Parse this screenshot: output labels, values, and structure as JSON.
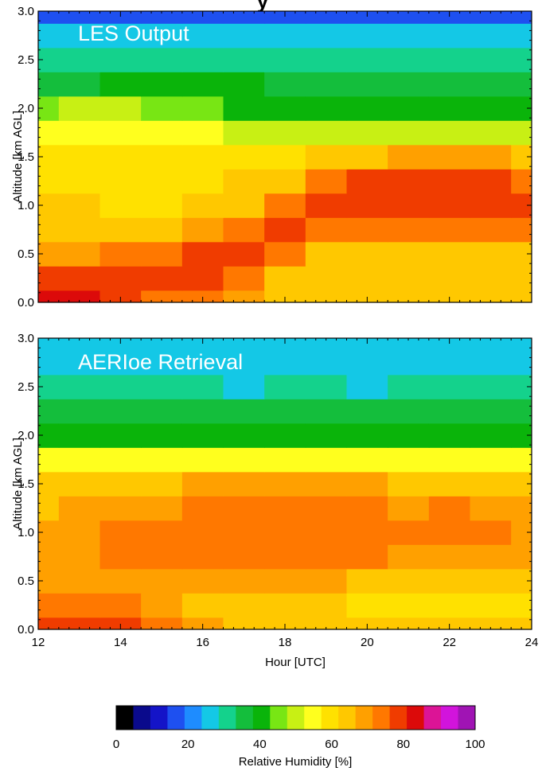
{
  "chart_data": [
    {
      "type": "heatmap",
      "panel_label": "LES Output",
      "title": "",
      "xlabel": "",
      "ylabel": "Altitude [km AGL]",
      "xlim": [
        12,
        24
      ],
      "ylim": [
        0.0,
        3.0
      ],
      "x_ticks": [
        "12",
        "14",
        "16",
        "18",
        "20",
        "22",
        "24"
      ],
      "y_ticks": [
        "0.0",
        "0.5",
        "1.0",
        "1.5",
        "2.0",
        "2.5",
        "3.0"
      ],
      "x_tick_labels_shown": false,
      "x": [
        12,
        13,
        14,
        15,
        16,
        17,
        18,
        19,
        20,
        21,
        22,
        23,
        24
      ],
      "y": [
        0.0,
        0.25,
        0.5,
        0.75,
        1.0,
        1.25,
        1.5,
        1.75,
        2.0,
        2.25,
        2.5,
        2.75,
        3.0
      ],
      "z_units": "Relative Humidity [%]",
      "z": [
        [
          85,
          85,
          80,
          76,
          72,
          68,
          64,
          62,
          62,
          62,
          62,
          62,
          62
        ],
        [
          78,
          78,
          80,
          80,
          78,
          72,
          66,
          63,
          63,
          63,
          63,
          63,
          63
        ],
        [
          70,
          70,
          72,
          76,
          80,
          80,
          74,
          66,
          64,
          64,
          64,
          64,
          64
        ],
        [
          64,
          64,
          64,
          64,
          68,
          76,
          80,
          76,
          72,
          72,
          72,
          72,
          72
        ],
        [
          62,
          62,
          60,
          60,
          62,
          66,
          74,
          80,
          80,
          78,
          78,
          78,
          78
        ],
        [
          60,
          61,
          60,
          60,
          60,
          62,
          66,
          74,
          80,
          80,
          80,
          78,
          76
        ],
        [
          60,
          61,
          60,
          58,
          58,
          58,
          60,
          64,
          66,
          68,
          68,
          68,
          66
        ],
        [
          54,
          56,
          56,
          54,
          54,
          52,
          52,
          52,
          52,
          52,
          52,
          52,
          50
        ],
        [
          46,
          48,
          48,
          46,
          44,
          42,
          40,
          40,
          40,
          40,
          40,
          40,
          40
        ],
        [
          38,
          38,
          40,
          42,
          42,
          40,
          38,
          36,
          36,
          35,
          35,
          35,
          35
        ],
        [
          32,
          32,
          32,
          32,
          32,
          32,
          32,
          32,
          32,
          32,
          32,
          32,
          32
        ],
        [
          26,
          26,
          26,
          26,
          26,
          26,
          26,
          26,
          26,
          26,
          26,
          26,
          26
        ],
        [
          18,
          18,
          18,
          18,
          18,
          18,
          18,
          18,
          18,
          18,
          18,
          18,
          18
        ]
      ]
    },
    {
      "type": "heatmap",
      "panel_label": "AERIoe Retrieval",
      "title": "",
      "xlabel": "Hour [UTC]",
      "ylabel": "Altitude [km AGL]",
      "xlim": [
        12,
        24
      ],
      "ylim": [
        0.0,
        3.0
      ],
      "x_ticks": [
        "12",
        "14",
        "16",
        "18",
        "20",
        "22",
        "24"
      ],
      "y_ticks": [
        "0.0",
        "0.5",
        "1.0",
        "1.5",
        "2.0",
        "2.5",
        "3.0"
      ],
      "x_tick_labels_shown": true,
      "x": [
        12,
        13,
        14,
        15,
        16,
        17,
        18,
        19,
        20,
        21,
        22,
        23,
        24
      ],
      "y": [
        0.0,
        0.25,
        0.5,
        0.75,
        1.0,
        1.25,
        1.5,
        1.75,
        2.0,
        2.25,
        2.5,
        2.75,
        3.0
      ],
      "z_units": "Relative Humidity [%]",
      "z": [
        [
          80,
          80,
          80,
          76,
          70,
          66,
          64,
          64,
          62,
          62,
          62,
          62,
          62
        ],
        [
          72,
          72,
          72,
          70,
          66,
          64,
          62,
          62,
          60,
          60,
          60,
          60,
          60
        ],
        [
          68,
          68,
          70,
          70,
          68,
          68,
          68,
          68,
          66,
          66,
          66,
          66,
          66
        ],
        [
          68,
          70,
          72,
          72,
          72,
          72,
          72,
          72,
          72,
          70,
          70,
          70,
          70
        ],
        [
          68,
          70,
          72,
          72,
          74,
          74,
          76,
          74,
          76,
          72,
          74,
          72,
          70
        ],
        [
          66,
          68,
          70,
          70,
          72,
          72,
          74,
          72,
          74,
          70,
          72,
          70,
          68
        ],
        [
          62,
          64,
          66,
          66,
          68,
          68,
          68,
          68,
          68,
          66,
          66,
          66,
          64
        ],
        [
          54,
          56,
          56,
          56,
          56,
          56,
          56,
          56,
          56,
          56,
          56,
          56,
          54
        ],
        [
          42,
          42,
          42,
          42,
          42,
          42,
          42,
          42,
          42,
          42,
          42,
          42,
          42
        ],
        [
          38,
          38,
          38,
          36,
          36,
          36,
          36,
          36,
          36,
          36,
          36,
          36,
          38
        ],
        [
          30,
          30,
          30,
          30,
          30,
          28,
          30,
          30,
          28,
          30,
          30,
          30,
          30
        ],
        [
          28,
          28,
          26,
          26,
          26,
          26,
          26,
          26,
          26,
          26,
          26,
          26,
          28
        ],
        [
          26,
          26,
          24,
          24,
          24,
          24,
          24,
          24,
          24,
          24,
          24,
          24,
          26
        ]
      ]
    }
  ],
  "colorbar": {
    "label": "Relative Humidity [%]",
    "range": [
      0,
      100
    ],
    "ticks": [
      "0",
      "20",
      "40",
      "60",
      "80",
      "100"
    ],
    "colors": [
      "#000000",
      "#0a0a8c",
      "#1414c8",
      "#1e50f0",
      "#1e8cff",
      "#14c8e6",
      "#14d28c",
      "#14be3c",
      "#0ab40a",
      "#78e614",
      "#c8f014",
      "#ffff1e",
      "#ffe100",
      "#ffc800",
      "#ffa000",
      "#ff7800",
      "#f03c00",
      "#dc0a0a",
      "#dc1496",
      "#d214dc",
      "#a014b4"
    ]
  },
  "header_fragment": "y"
}
